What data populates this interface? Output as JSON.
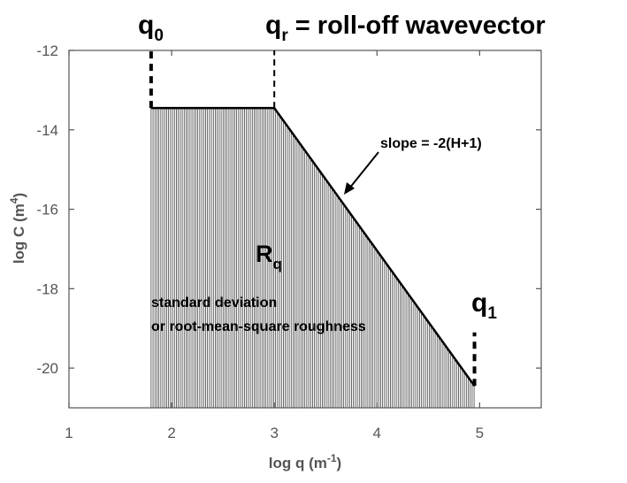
{
  "chart_data": {
    "type": "line",
    "title": "",
    "xlabel_main": "log q (m",
    "xlabel_sup": "-1",
    "xlabel_tail": ")",
    "ylabel_main": "log C (m",
    "ylabel_sup": "4",
    "ylabel_tail": ")",
    "xlim": [
      1,
      5.6
    ],
    "ylim": [
      -21,
      -12
    ],
    "x_ticks": [
      1,
      2,
      3,
      4,
      5
    ],
    "x_tick_labels": [
      "1",
      "2",
      "3",
      "4",
      "5"
    ],
    "y_ticks": [
      -12,
      -14,
      -16,
      -18,
      -20
    ],
    "y_tick_labels": [
      "-12",
      "-14",
      "-16",
      "-18",
      "-20"
    ],
    "grid": false,
    "series": [
      {
        "x": [
          1.8,
          3.0,
          4.95
        ],
        "y": [
          -13.45,
          -13.45,
          -20.45
        ]
      }
    ],
    "markers": {
      "q0": {
        "x": 1.8,
        "y_from": -13.45,
        "y_to": -12.0
      },
      "qr": {
        "x": 3.0,
        "y_from": -13.45,
        "y_to": -12.0
      },
      "q1": {
        "x": 4.95,
        "y_from": -20.45,
        "y_to": -19.1
      }
    },
    "annotations": {
      "q0": {
        "main": "q",
        "sub": "0"
      },
      "qr": {
        "main": "q",
        "sub": "r",
        "rest": " = roll-off wavevector"
      },
      "q1": {
        "main": "q",
        "sub": "1"
      },
      "slope": "slope = -2(H+1)",
      "rq": {
        "main": "R",
        "sub": "q"
      },
      "std_line1": "standard deviation",
      "std_line2": "or root-mean-square roughness"
    }
  }
}
